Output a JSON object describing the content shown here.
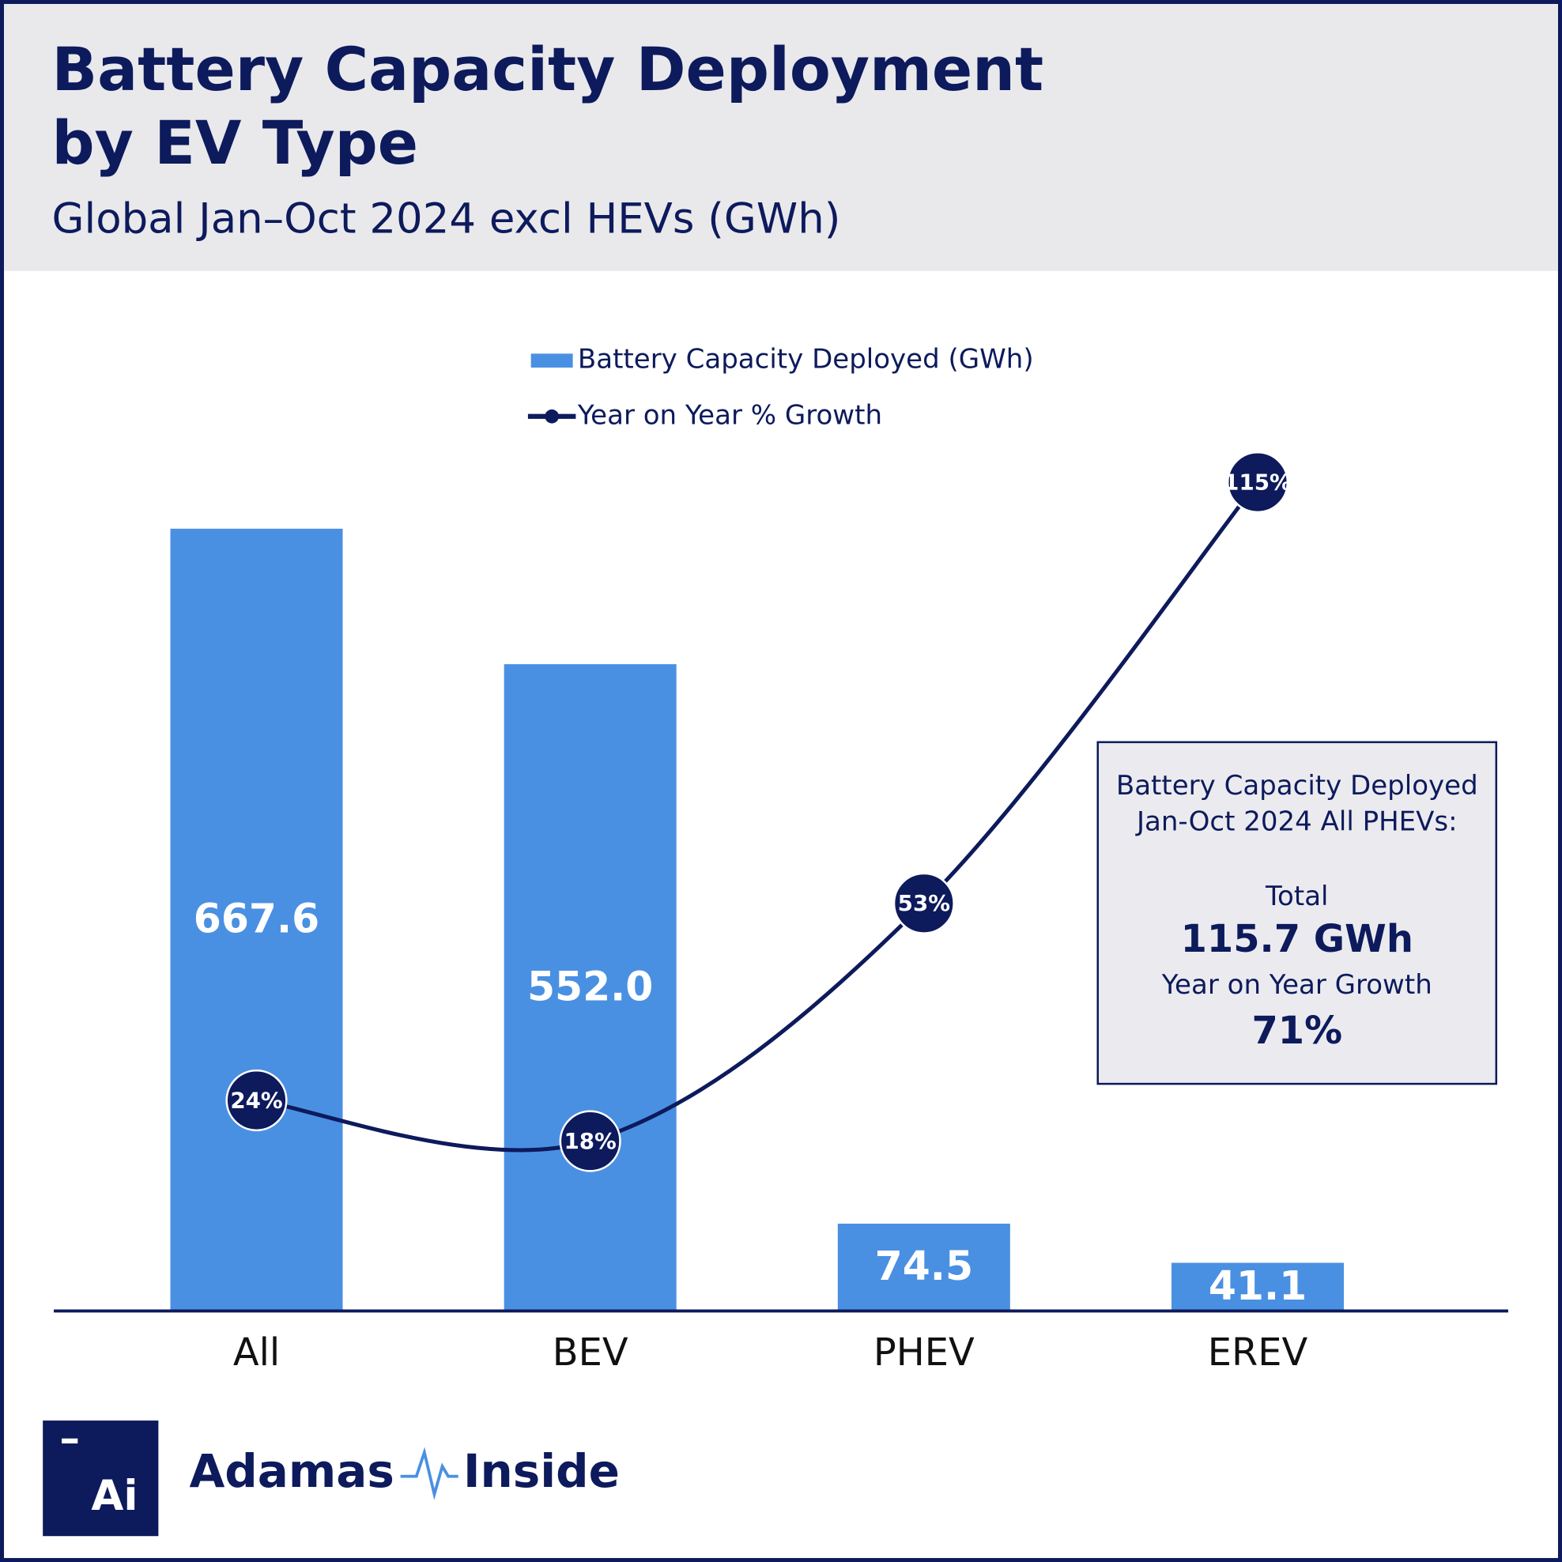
{
  "chart_data": {
    "type": "bar",
    "title": [
      "Battery Capacity Deployment",
      "by EV Type"
    ],
    "subtitle": "Global Jan–Oct 2024 excl HEVs (GWh)",
    "categories": [
      "All",
      "BEV",
      "PHEV",
      "EREV"
    ],
    "series": [
      {
        "name": "Battery Capacity Deployed (GWh)",
        "type": "bar",
        "color": "#4a90e2",
        "values": [
          667.6,
          552.0,
          74.5,
          41.1
        ],
        "value_labels": [
          "667.6",
          "552.0",
          "74.5",
          "41.1"
        ]
      },
      {
        "name": "Year on Year % Growth",
        "type": "line",
        "axis": "y2",
        "color": "#0d1a5c",
        "values": [
          24,
          18,
          53,
          115
        ],
        "value_labels": [
          "24%",
          "18%",
          "53%",
          "115%"
        ]
      }
    ],
    "ylim": [
      0,
      800
    ],
    "y2lim": [
      -7,
      131
    ],
    "annotation": {
      "lines": [
        "Battery Capacity Deployed",
        "Jan-Oct 2024 All PHEVs:",
        "Total",
        "115.7 GWh",
        "Year on Year Growth",
        "71%"
      ]
    },
    "logo": {
      "mark": "Ai",
      "name": [
        "Adamas",
        "Inside"
      ]
    }
  }
}
